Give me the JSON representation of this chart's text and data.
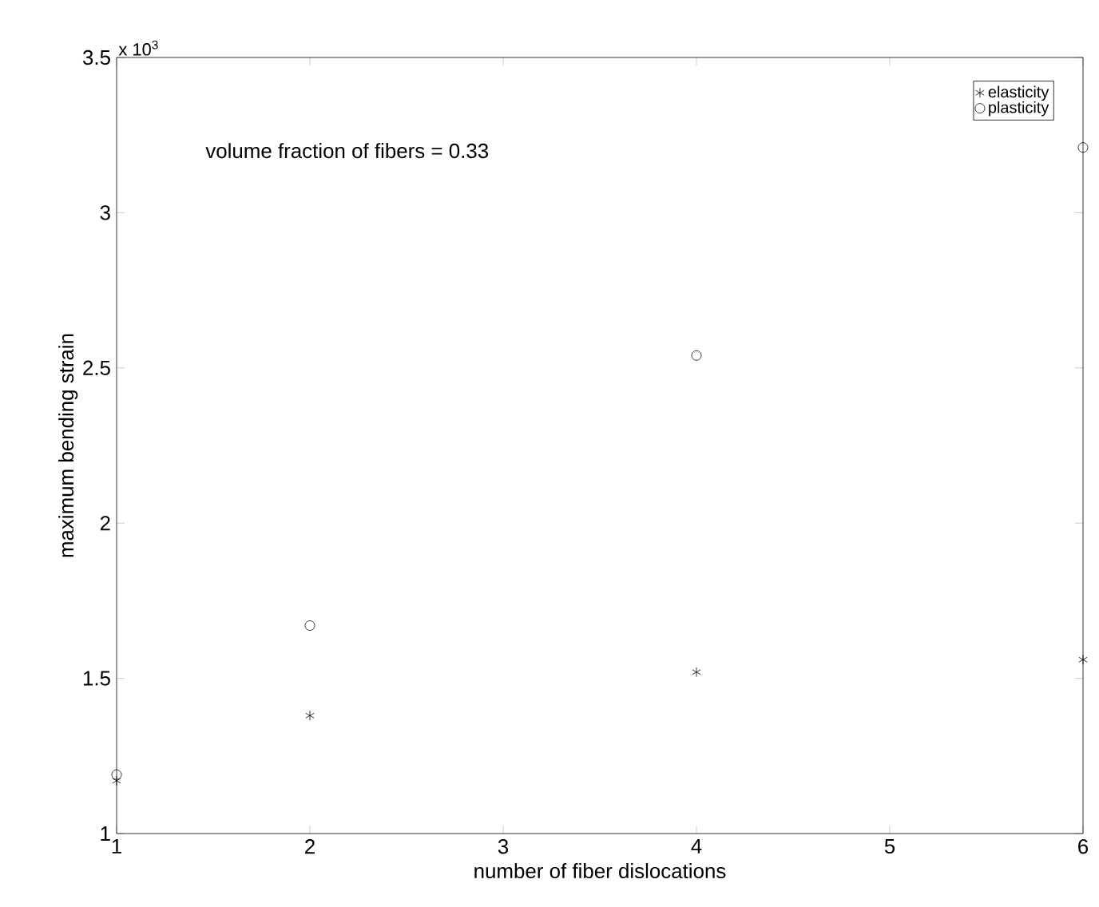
{
  "chart_data": {
    "type": "scatter",
    "xlabel": "number of fiber dislocations",
    "ylabel": "maximum bending strain",
    "annotations": [
      "x 10$^{3}$",
      "volume fraction of fibers = 0.33"
    ],
    "series": [
      {
        "name": "elasticity",
        "color": "#000000",
        "marker": "cross",
        "x": [
          1,
          2,
          4,
          6
        ],
        "values": [
          1.17,
          1.38,
          1.52,
          1.56
        ]
      },
      {
        "name": "plasticity",
        "color": "#000000",
        "marker": "circle",
        "x": [
          1,
          2,
          4,
          6
        ],
        "values": [
          1.19,
          1.67,
          2.54,
          3.21
        ]
      }
    ],
    "xlim": [
      1,
      6
    ],
    "ylim": [
      1,
      3.5
    ],
    "xticks": [
      1,
      2,
      3,
      4,
      5,
      6
    ],
    "yticks": [
      1,
      1.5,
      2,
      2.5,
      3,
      3.5
    ],
    "legend": "top right"
  }
}
